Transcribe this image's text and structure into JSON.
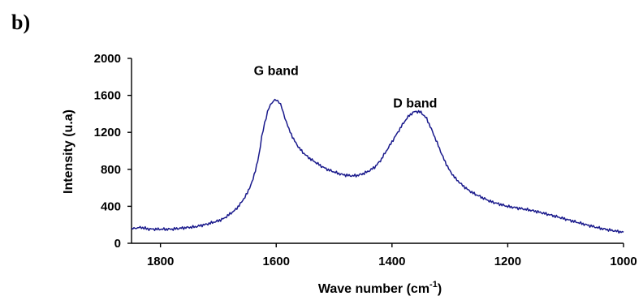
{
  "panel_label": "b)",
  "chart_data": {
    "type": "line",
    "title": "",
    "xlabel": "Wave number (cm",
    "xlabel_superscript": "-1",
    "xlabel_suffix": ")",
    "ylabel": "Intensity (u.a)",
    "xlim": [
      1850,
      1000
    ],
    "ylim": [
      0,
      2000
    ],
    "x_reversed": true,
    "grid": false,
    "xticks": [
      1800,
      1600,
      1400,
      1200,
      1000
    ],
    "yticks": [
      0,
      400,
      800,
      1200,
      1600,
      2000
    ],
    "annotations": [
      {
        "text": "G band",
        "x": 1600,
        "y": 1820
      },
      {
        "text": "D band",
        "x": 1360,
        "y": 1470
      }
    ],
    "series": [
      {
        "color": "#1a1a8c",
        "x": [
          1850,
          1820,
          1800,
          1780,
          1760,
          1740,
          1720,
          1700,
          1690,
          1680,
          1670,
          1660,
          1650,
          1640,
          1630,
          1625,
          1620,
          1615,
          1610,
          1605,
          1600,
          1595,
          1590,
          1585,
          1580,
          1570,
          1560,
          1550,
          1540,
          1530,
          1520,
          1510,
          1500,
          1490,
          1480,
          1470,
          1460,
          1450,
          1440,
          1430,
          1420,
          1410,
          1400,
          1390,
          1380,
          1370,
          1360,
          1350,
          1340,
          1330,
          1320,
          1310,
          1300,
          1290,
          1280,
          1270,
          1260,
          1250,
          1240,
          1230,
          1220,
          1210,
          1200,
          1180,
          1160,
          1140,
          1120,
          1100,
          1080,
          1060,
          1040,
          1020,
          1000
        ],
        "y": [
          165,
          160,
          155,
          150,
          160,
          170,
          200,
          240,
          270,
          320,
          370,
          450,
          550,
          700,
          950,
          1150,
          1300,
          1420,
          1500,
          1540,
          1550,
          1530,
          1460,
          1360,
          1260,
          1120,
          1020,
          950,
          900,
          860,
          820,
          790,
          770,
          750,
          740,
          735,
          740,
          760,
          790,
          830,
          900,
          1000,
          1100,
          1200,
          1300,
          1380,
          1420,
          1410,
          1340,
          1200,
          1050,
          900,
          780,
          700,
          640,
          590,
          550,
          520,
          490,
          460,
          440,
          420,
          400,
          375,
          350,
          320,
          290,
          260,
          230,
          200,
          170,
          145,
          120
        ]
      }
    ]
  }
}
